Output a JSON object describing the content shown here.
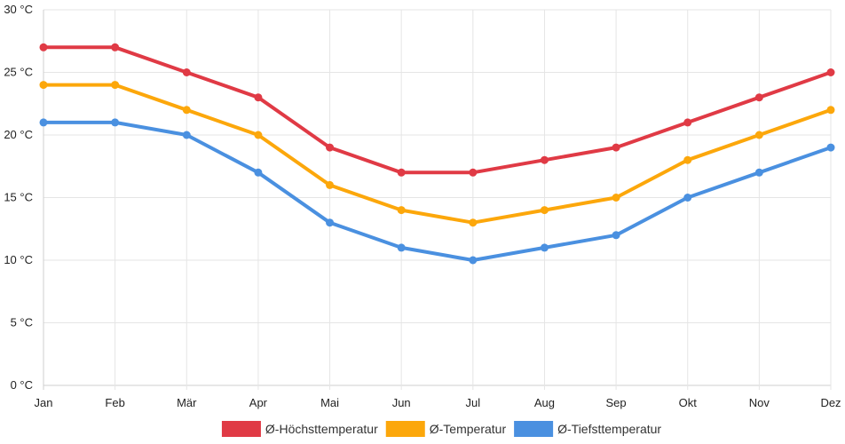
{
  "chart_data": {
    "type": "line",
    "categories": [
      "Jan",
      "Feb",
      "Mär",
      "Apr",
      "Mai",
      "Jun",
      "Jul",
      "Aug",
      "Sep",
      "Okt",
      "Nov",
      "Dez"
    ],
    "series": [
      {
        "name": "Ø-Höchsttemperatur",
        "color": "#e03a45",
        "values": [
          27,
          27,
          25,
          23,
          19,
          17,
          17,
          18,
          19,
          21,
          23,
          25
        ]
      },
      {
        "name": "Ø-Temperatur",
        "color": "#fca70b",
        "values": [
          24,
          24,
          22,
          20,
          16,
          14,
          13,
          14,
          15,
          18,
          20,
          22
        ]
      },
      {
        "name": "Ø-Tiefsttemperatur",
        "color": "#4a90e0",
        "values": [
          21,
          21,
          20,
          17,
          13,
          11,
          10,
          11,
          12,
          15,
          17,
          19
        ]
      }
    ],
    "y_ticks": [
      "0 °C",
      "5 °C",
      "10 °C",
      "15 °C",
      "20 °C",
      "25 °C",
      "30 °C"
    ],
    "ylim": [
      0,
      30
    ],
    "y_step": 5,
    "grid": true,
    "legend_position": "bottom-center"
  }
}
